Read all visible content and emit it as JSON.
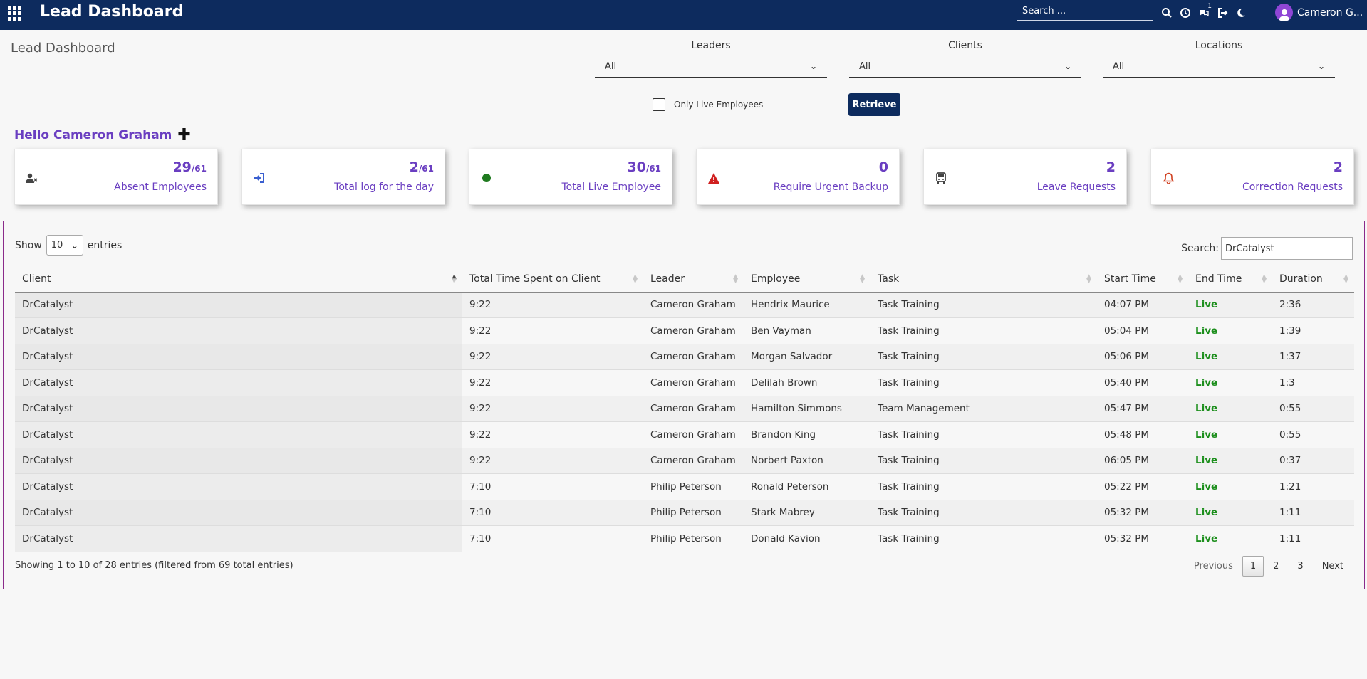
{
  "app": {
    "title": "Lead Dashboard",
    "search_placeholder": "Search ...",
    "user_name": "Cameron G...",
    "notification_count": "1"
  },
  "page": {
    "title": "Lead Dashboard",
    "greeting": "Hello Cameron Graham"
  },
  "filters": [
    {
      "label": "Leaders",
      "value": "All"
    },
    {
      "label": "Clients",
      "value": "All"
    },
    {
      "label": "Locations",
      "value": "All"
    }
  ],
  "only_live_label": "Only Live Employees",
  "retrieve_label": "Retrieve",
  "cards": [
    {
      "count": "29",
      "total": "/61",
      "label": "Absent Employees",
      "icon": "user-x-icon",
      "color": "#444444"
    },
    {
      "count": "2",
      "total": "/61",
      "label": "Total log for the day",
      "icon": "sign-in-icon",
      "color": "#3a5fd0"
    },
    {
      "count": "30",
      "total": "/61",
      "label": "Total Live Employee",
      "icon": "green-dot-icon",
      "color": "#1f7a1f"
    },
    {
      "count": "0",
      "total": "",
      "label": "Require Urgent Backup",
      "icon": "warning-icon",
      "color": "#d02020"
    },
    {
      "count": "2",
      "total": "",
      "label": "Leave Requests",
      "icon": "bus-icon",
      "color": "#444444"
    },
    {
      "count": "2",
      "total": "",
      "label": "Correction Requests",
      "icon": "bell-icon",
      "color": "#d04020"
    }
  ],
  "table": {
    "show_label": "Show",
    "entries_label": "entries",
    "page_length": "10",
    "search_label": "Search:",
    "search_value": "DrCatalyst",
    "columns": [
      "Client",
      "Total Time Spent on Client",
      "Leader",
      "Employee",
      "Task",
      "Start Time",
      "End Time",
      "Duration"
    ],
    "rows": [
      [
        "DrCatalyst",
        "9:22",
        "Cameron Graham",
        "Hendrix Maurice",
        "Task Training",
        "04:07 PM",
        "Live",
        "2:36"
      ],
      [
        "DrCatalyst",
        "9:22",
        "Cameron Graham",
        "Ben Vayman",
        "Task Training",
        "05:04 PM",
        "Live",
        "1:39"
      ],
      [
        "DrCatalyst",
        "9:22",
        "Cameron Graham",
        "Morgan Salvador",
        "Task Training",
        "05:06 PM",
        "Live",
        "1:37"
      ],
      [
        "DrCatalyst",
        "9:22",
        "Cameron Graham",
        "Delilah Brown",
        "Task Training",
        "05:40 PM",
        "Live",
        "1:3"
      ],
      [
        "DrCatalyst",
        "9:22",
        "Cameron Graham",
        "Hamilton Simmons",
        "Team Management",
        "05:47 PM",
        "Live",
        "0:55"
      ],
      [
        "DrCatalyst",
        "9:22",
        "Cameron Graham",
        "Brandon King",
        "Task Training",
        "05:48 PM",
        "Live",
        "0:55"
      ],
      [
        "DrCatalyst",
        "9:22",
        "Cameron Graham",
        "Norbert Paxton",
        "Task Training",
        "06:05 PM",
        "Live",
        "0:37"
      ],
      [
        "DrCatalyst",
        "7:10",
        "Philip Peterson",
        "Ronald Peterson",
        "Task Training",
        "05:22 PM",
        "Live",
        "1:21"
      ],
      [
        "DrCatalyst",
        "7:10",
        "Philip Peterson",
        "Stark Mabrey",
        "Task Training",
        "05:32 PM",
        "Live",
        "1:11"
      ],
      [
        "DrCatalyst",
        "7:10",
        "Philip Peterson",
        "Donald Kavion",
        "Task Training",
        "05:32 PM",
        "Live",
        "1:11"
      ]
    ],
    "info": "Showing 1 to 10 of 28 entries (filtered from 69 total entries)",
    "pagination": {
      "previous": "Previous",
      "pages": [
        "1",
        "2",
        "3"
      ],
      "next": "Next"
    }
  }
}
